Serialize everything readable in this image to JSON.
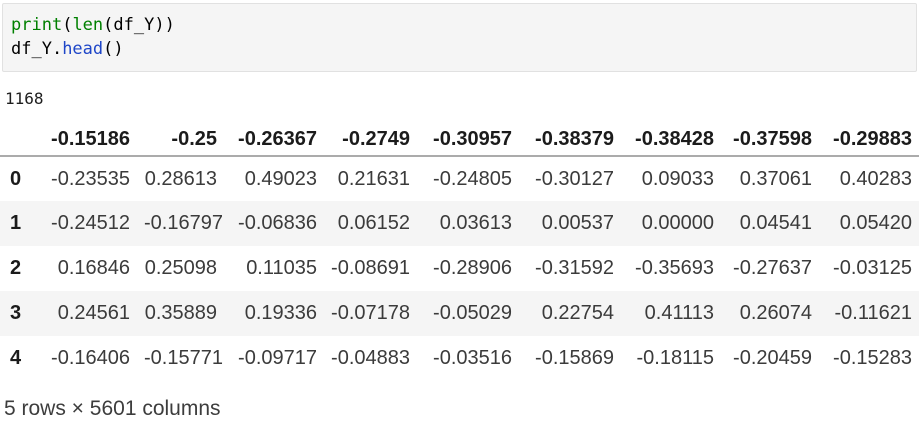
{
  "code_cell": {
    "lines": [
      [
        {
          "text": "print",
          "style": "builtin"
        },
        {
          "text": "(",
          "style": "plain"
        },
        {
          "text": "len",
          "style": "builtin"
        },
        {
          "text": "(df_Y))",
          "style": "plain"
        }
      ],
      [
        {
          "text": "df_Y.",
          "style": "plain"
        },
        {
          "text": "head",
          "style": "method"
        },
        {
          "text": "()",
          "style": "plain"
        }
      ]
    ]
  },
  "stream_output": "1168",
  "dataframe": {
    "columns": [
      "-0.15186",
      "-0.25",
      "-0.26367",
      "-0.2749",
      "-0.30957",
      "-0.38379",
      "-0.38428",
      "-0.37598",
      "-0.29883"
    ],
    "rows": [
      {
        "index": "0",
        "values": [
          "-0.23535",
          "0.28613",
          "0.49023",
          "0.21631",
          "-0.24805",
          "-0.30127",
          "0.09033",
          "0.37061",
          "0.40283"
        ]
      },
      {
        "index": "1",
        "values": [
          "-0.24512",
          "-0.16797",
          "-0.06836",
          "0.06152",
          "0.03613",
          "0.00537",
          "0.00000",
          "0.04541",
          "0.05420"
        ]
      },
      {
        "index": "2",
        "values": [
          "0.16846",
          "0.25098",
          "0.11035",
          "-0.08691",
          "-0.28906",
          "-0.31592",
          "-0.35693",
          "-0.27637",
          "-0.03125"
        ]
      },
      {
        "index": "3",
        "values": [
          "0.24561",
          "0.35889",
          "0.19336",
          "-0.07178",
          "-0.05029",
          "0.22754",
          "0.41113",
          "0.26074",
          "-0.11621"
        ]
      },
      {
        "index": "4",
        "values": [
          "-0.16406",
          "-0.15771",
          "-0.09717",
          "-0.04883",
          "-0.03516",
          "-0.15869",
          "-0.18115",
          "-0.20459",
          "-0.15283"
        ]
      }
    ],
    "summary": "5 rows × 5601 columns"
  },
  "colors": {
    "builtin": "#008000",
    "method": "#1e46c8",
    "cell_bg": "#f5f5f5",
    "cell_border": "#e1e1e1",
    "stripe": "#f5f5f5",
    "header_rule": "#ababab"
  }
}
